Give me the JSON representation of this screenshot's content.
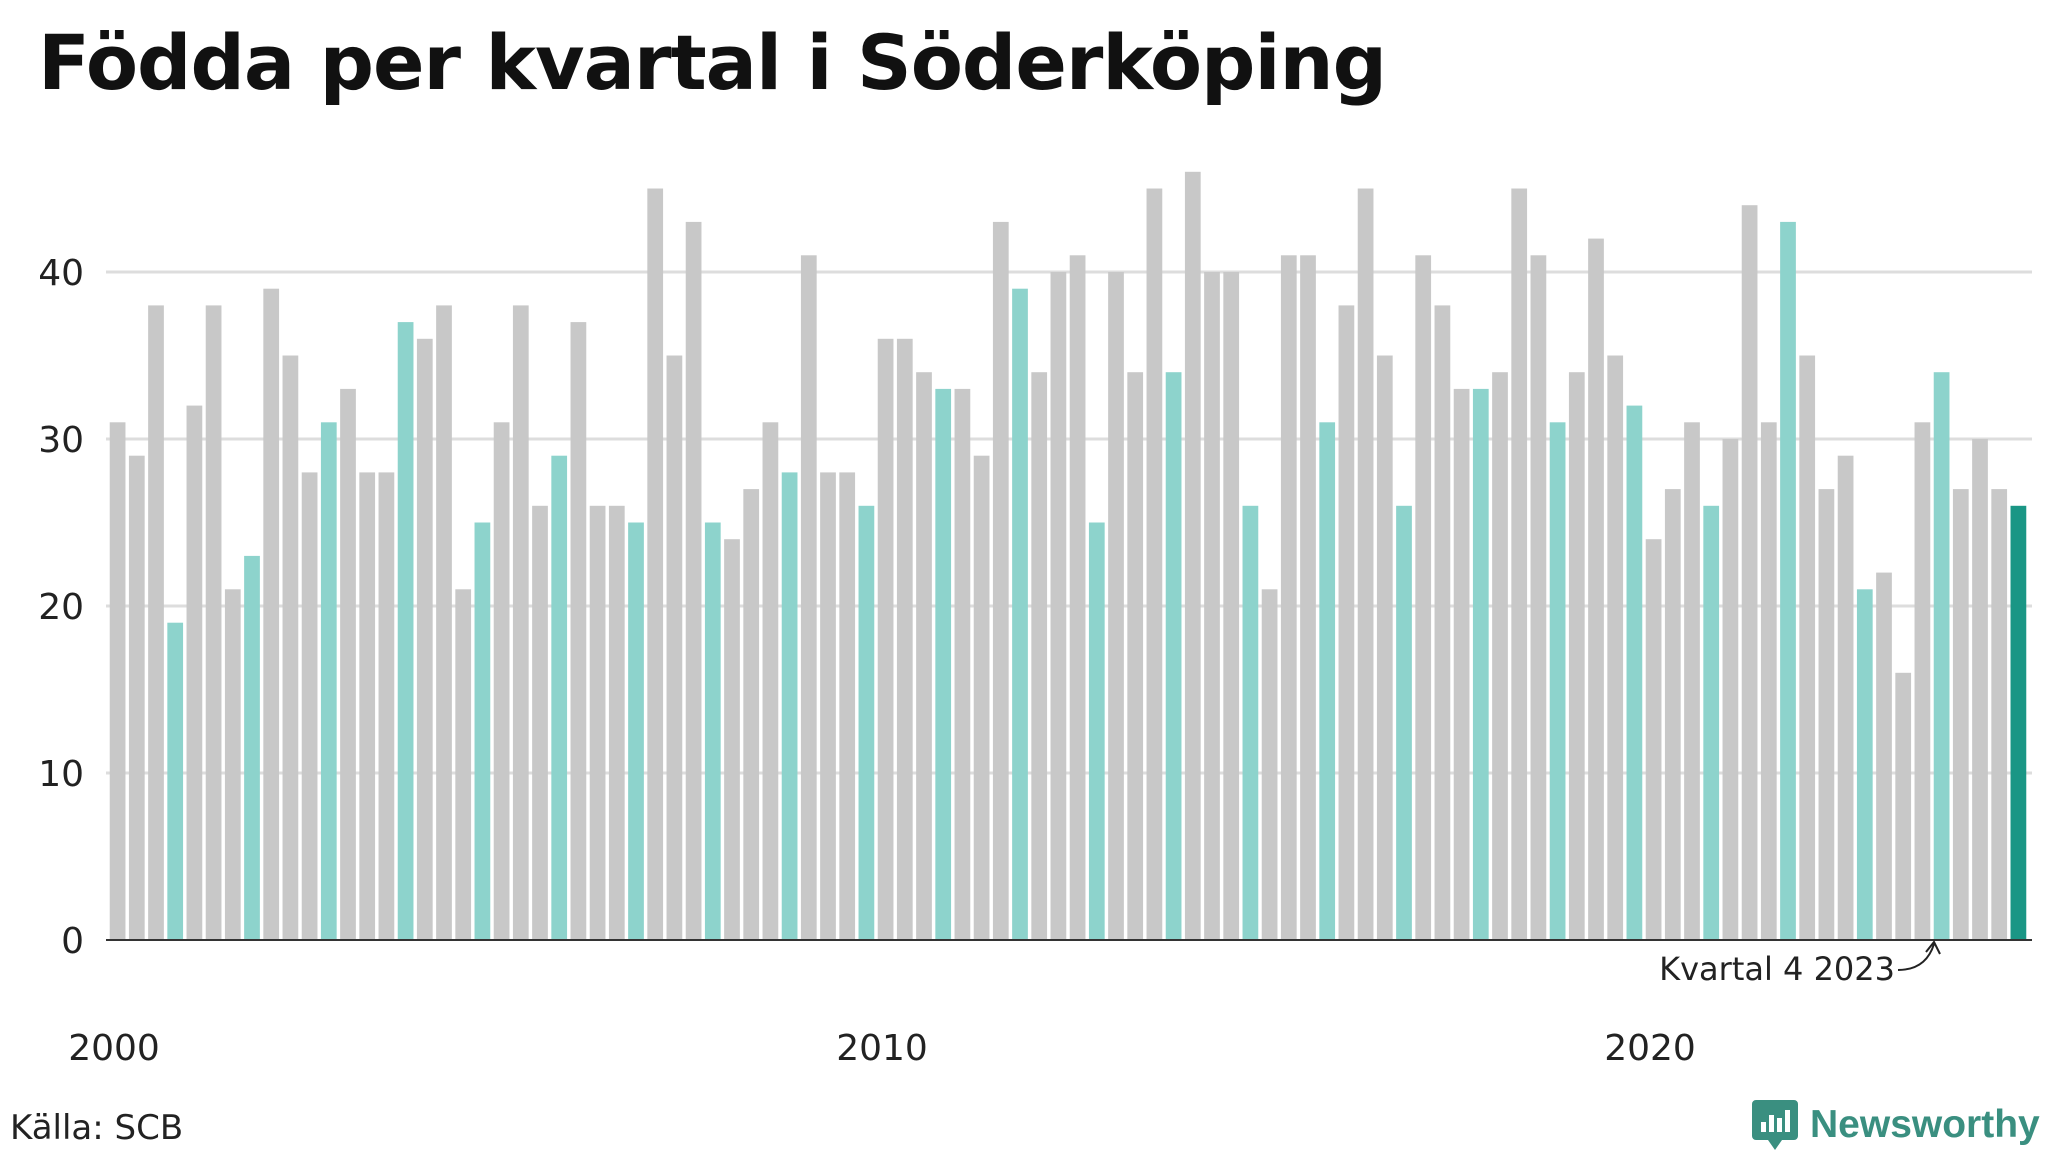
{
  "chart_data": {
    "type": "bar",
    "title": "Födda per kvartal i Söderköping",
    "xlabel": "",
    "ylabel": "",
    "ylim": [
      0,
      46
    ],
    "yticks": [
      0,
      10,
      20,
      30,
      40
    ],
    "x_tick_labels": [
      "2000",
      "2010",
      "2020"
    ],
    "start": "2000 kvartal 1",
    "grid": true,
    "annotation": "Kvartal 4 2023",
    "values": [
      31,
      29,
      38,
      19,
      32,
      38,
      21,
      23,
      39,
      35,
      28,
      31,
      33,
      28,
      28,
      37,
      36,
      38,
      21,
      25,
      31,
      38,
      26,
      29,
      37,
      26,
      26,
      25,
      45,
      35,
      43,
      25,
      24,
      27,
      31,
      28,
      41,
      28,
      28,
      26,
      36,
      36,
      34,
      33,
      33,
      29,
      43,
      39,
      34,
      40,
      41,
      25,
      40,
      34,
      45,
      34,
      46,
      40,
      40,
      26,
      21,
      41,
      41,
      31,
      38,
      45,
      35,
      26,
      41,
      38,
      33,
      33,
      34,
      45,
      41,
      31,
      34,
      42,
      35,
      32,
      24,
      27,
      31,
      26,
      30,
      44,
      31,
      43,
      35,
      27,
      29,
      21,
      22,
      16,
      31,
      34,
      27,
      30,
      27,
      26
    ],
    "colors": {
      "default": "#c8c8c8",
      "highlight": "#8dd3cc",
      "latest": "#1a9685",
      "grid": "#dddddd",
      "axis": "#333333"
    }
  },
  "source_label": "Källa: SCB",
  "brand": {
    "name": "Newsworthy",
    "color": "#3a8f80"
  }
}
